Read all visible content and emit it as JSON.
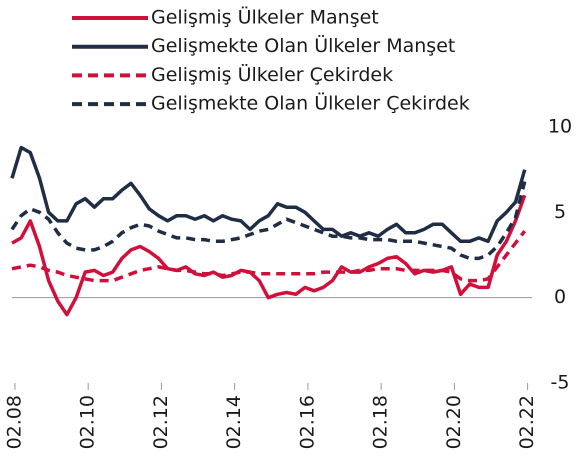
{
  "chart_data": {
    "type": "line",
    "x": [
      2008,
      2008.25,
      2008.5,
      2008.75,
      2009,
      2009.25,
      2009.5,
      2009.75,
      2010,
      2010.25,
      2010.5,
      2010.75,
      2011,
      2011.25,
      2011.5,
      2011.75,
      2012,
      2012.25,
      2012.5,
      2012.75,
      2013,
      2013.25,
      2013.5,
      2013.75,
      2014,
      2014.25,
      2014.5,
      2014.75,
      2015,
      2015.25,
      2015.5,
      2015.75,
      2016,
      2016.25,
      2016.5,
      2016.75,
      2017,
      2017.25,
      2017.5,
      2017.75,
      2018,
      2018.25,
      2018.5,
      2018.75,
      2019,
      2019.25,
      2019.5,
      2019.75,
      2020,
      2020.25,
      2020.5,
      2020.75,
      2021,
      2021.25,
      2021.5,
      2021.75,
      2022
    ],
    "series": [
      {
        "name": "Gelişmiş Ülkeler Manşet",
        "color": "#d0103a",
        "dash": false,
        "values": [
          3.2,
          3.5,
          4.5,
          3,
          1,
          -0.2,
          -1,
          0,
          1.5,
          1.6,
          1.3,
          1.5,
          2.3,
          2.8,
          3,
          2.7,
          2.3,
          1.7,
          1.6,
          1.8,
          1.4,
          1.3,
          1.5,
          1.2,
          1.3,
          1.6,
          1.5,
          1,
          0,
          0.2,
          0.3,
          0.2,
          0.6,
          0.4,
          0.6,
          1,
          1.8,
          1.5,
          1.5,
          1.8,
          2,
          2.3,
          2.4,
          2,
          1.4,
          1.6,
          1.5,
          1.6,
          1.8,
          0.2,
          0.8,
          0.6,
          0.6,
          2.5,
          3.3,
          4.5,
          6
        ]
      },
      {
        "name": "Gelişmekte Olan Ülkeler Manşet",
        "color": "#1f2d45",
        "dash": false,
        "values": [
          7,
          8.8,
          8.5,
          7,
          5,
          4.5,
          4.5,
          5.5,
          5.8,
          5.3,
          5.8,
          5.8,
          6.3,
          6.7,
          6,
          5.2,
          4.8,
          4.5,
          4.8,
          4.8,
          4.6,
          4.8,
          4.5,
          4.8,
          4.6,
          4.5,
          4,
          4.5,
          4.8,
          5.5,
          5.3,
          5.3,
          5,
          4.5,
          4,
          4,
          3.6,
          3.8,
          3.6,
          3.8,
          3.6,
          4,
          4.3,
          3.8,
          3.8,
          4,
          4.3,
          4.3,
          3.8,
          3.3,
          3.3,
          3.5,
          3.3,
          4.5,
          5,
          5.6,
          7.5
        ]
      },
      {
        "name": "Gelişmiş Ülkeler Çekirdek",
        "color": "#d0103a",
        "dash": true,
        "values": [
          1.7,
          1.8,
          1.9,
          1.8,
          1.6,
          1.5,
          1.3,
          1.2,
          1.1,
          1,
          1,
          1,
          1.2,
          1.4,
          1.6,
          1.7,
          1.8,
          1.7,
          1.6,
          1.6,
          1.5,
          1.4,
          1.4,
          1.3,
          1.4,
          1.5,
          1.5,
          1.4,
          1.4,
          1.4,
          1.4,
          1.4,
          1.4,
          1.4,
          1.5,
          1.5,
          1.5,
          1.5,
          1.6,
          1.6,
          1.7,
          1.7,
          1.7,
          1.6,
          1.6,
          1.6,
          1.6,
          1.6,
          1.5,
          1.1,
          1,
          1,
          1.1,
          1.8,
          2.5,
          3.2,
          3.9
        ]
      },
      {
        "name": "Gelişmekte Olan Ülkeler Çekirdek",
        "color": "#1f2d45",
        "dash": true,
        "values": [
          4,
          4.8,
          5.2,
          5,
          4.6,
          3.8,
          3.2,
          2.9,
          2.8,
          2.8,
          3,
          3.3,
          3.8,
          4.1,
          4.3,
          4.2,
          3.9,
          3.7,
          3.5,
          3.5,
          3.4,
          3.4,
          3.3,
          3.3,
          3.4,
          3.5,
          3.7,
          3.9,
          4,
          4.3,
          4.6,
          4.4,
          4.2,
          4,
          3.8,
          3.6,
          3.6,
          3.5,
          3.5,
          3.4,
          3.4,
          3.4,
          3.3,
          3.3,
          3.3,
          3.2,
          3.1,
          3,
          2.9,
          2.5,
          2.3,
          2.3,
          2.5,
          3,
          3.8,
          4.7,
          6.8
        ]
      }
    ],
    "xlim": [
      2008,
      2022.2
    ],
    "xticks": [
      {
        "value": 2008.08,
        "label": "02.08"
      },
      {
        "value": 2010.08,
        "label": "02.10"
      },
      {
        "value": 2012.08,
        "label": "02.12"
      },
      {
        "value": 2014.08,
        "label": "02.14"
      },
      {
        "value": 2016.08,
        "label": "02.16"
      },
      {
        "value": 2018.08,
        "label": "02.18"
      },
      {
        "value": 2020.08,
        "label": "02.20"
      },
      {
        "value": 2022.08,
        "label": "02.22"
      }
    ],
    "ylim": [
      -5,
      10
    ],
    "yticks": [
      10,
      5,
      0,
      -5
    ],
    "y_axis_side": "right",
    "legend": "top"
  }
}
